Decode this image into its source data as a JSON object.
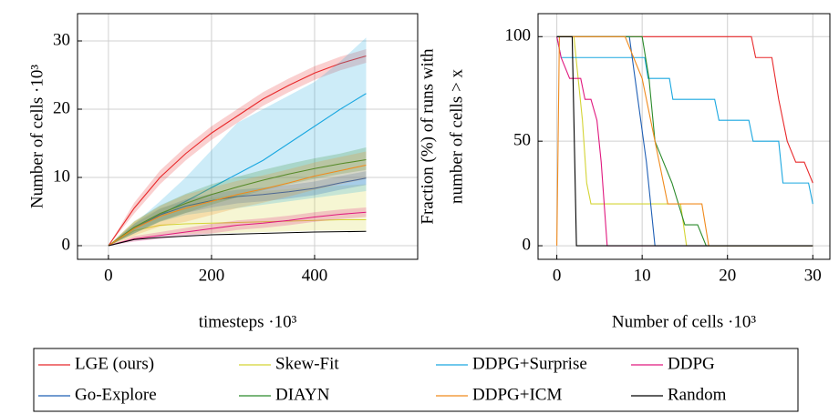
{
  "chart_data": [
    {
      "type": "line",
      "xlabel": "timesteps ·10³",
      "ylabel": "Number of cells ·10³",
      "xlim": [
        -60,
        600
      ],
      "ylim": [
        -2,
        34
      ],
      "xticks": [
        0,
        200,
        400
      ],
      "yticks": [
        0,
        10,
        20,
        30
      ],
      "grid": true,
      "x": [
        0,
        50,
        100,
        150,
        200,
        250,
        300,
        350,
        400,
        450,
        500
      ],
      "series": [
        {
          "name": "LGE (ours)",
          "color": "#e8282a",
          "values": [
            0,
            5.5,
            10,
            13.5,
            16.5,
            19,
            21.5,
            23.5,
            25.3,
            26.7,
            27.8
          ],
          "lower": [
            0,
            4.7,
            9,
            12.5,
            15.5,
            18,
            20.5,
            22.5,
            24.3,
            25.7,
            26.8
          ],
          "upper": [
            0,
            6.3,
            11,
            14.5,
            17.5,
            20,
            22.5,
            24.5,
            26.3,
            27.7,
            28.8
          ]
        },
        {
          "name": "Skew-Fit",
          "color": "#d4d435",
          "values": [
            0,
            2.2,
            3,
            3.2,
            3.3,
            3.4,
            3.5,
            3.6,
            3.7,
            3.8,
            3.8
          ],
          "lower": [
            0,
            0.8,
            1.5,
            1.7,
            1.8,
            1.9,
            2,
            2.1,
            2.2,
            2.2,
            2.2
          ],
          "upper": [
            0,
            3.5,
            5.5,
            6.5,
            7,
            7.5,
            8,
            8.3,
            8.6,
            8.8,
            9
          ]
        },
        {
          "name": "DDPG+Surprise",
          "color": "#1aa7e0",
          "values": [
            0,
            2.5,
            4.5,
            6.5,
            8.5,
            10.5,
            12.5,
            15,
            17.5,
            20,
            22.3
          ],
          "lower": [
            0,
            1.8,
            3.5,
            4.5,
            5,
            5.5,
            6,
            6.5,
            7,
            7.5,
            8
          ],
          "upper": [
            0,
            3.2,
            6.5,
            10,
            14,
            18,
            20,
            22,
            24,
            27,
            30.5
          ]
        },
        {
          "name": "DDPG",
          "color": "#e0197f",
          "values": [
            0,
            1,
            1.5,
            2,
            2.5,
            3,
            3.3,
            3.7,
            4.2,
            4.6,
            4.9
          ],
          "lower": [
            0,
            0.6,
            1,
            1.4,
            1.8,
            2.3,
            2.6,
            3,
            3.5,
            3.9,
            4.2
          ],
          "upper": [
            0,
            1.4,
            2,
            2.6,
            3.2,
            3.7,
            4,
            4.4,
            4.9,
            5.3,
            5.6
          ]
        },
        {
          "name": "Go-Explore",
          "color": "#1f5fb5",
          "values": [
            0,
            2.5,
            4.5,
            5.8,
            6.6,
            7.2,
            7.5,
            7.9,
            8.4,
            9.2,
            9.9
          ],
          "lower": [
            0,
            1.8,
            3.6,
            4.8,
            5.6,
            6.2,
            6.5,
            6.9,
            7.4,
            8.2,
            8.9
          ],
          "upper": [
            0,
            3.2,
            5.4,
            6.8,
            7.6,
            8.2,
            8.5,
            8.9,
            9.4,
            10.2,
            10.9
          ]
        },
        {
          "name": "DIAYN",
          "color": "#2a8a2a",
          "values": [
            0,
            2.7,
            4.7,
            6.2,
            7.5,
            8.6,
            9.6,
            10.5,
            11.3,
            12,
            12.6
          ],
          "lower": [
            0,
            1.8,
            3.5,
            4.8,
            6,
            7.1,
            8.1,
            9,
            9.8,
            10.5,
            11.1
          ],
          "upper": [
            0,
            3.6,
            5.9,
            7.6,
            9,
            10.1,
            11.1,
            12,
            12.8,
            13.5,
            14.4
          ]
        },
        {
          "name": "DDPG+ICM",
          "color": "#f08a1c",
          "values": [
            0,
            2.5,
            4.3,
            5.5,
            6.5,
            7.5,
            8.3,
            9.2,
            10.2,
            11,
            11.8
          ],
          "lower": [
            0,
            1.5,
            2.8,
            3.5,
            4.5,
            5.5,
            6.3,
            7.2,
            8.2,
            9,
            9.8
          ],
          "upper": [
            0,
            3.5,
            5.8,
            7.5,
            8.5,
            9.5,
            10.3,
            11.2,
            12.2,
            13,
            13.8
          ]
        },
        {
          "name": "Random",
          "color": "#000000",
          "values": [
            0,
            0.9,
            1.2,
            1.4,
            1.6,
            1.7,
            1.8,
            1.9,
            2.0,
            2.05,
            2.1
          ]
        }
      ]
    },
    {
      "type": "line",
      "xlabel": "Number of cells ·10³",
      "ylabel": [
        "Fraction (%) of runs with",
        "number of cells > x"
      ],
      "xlim": [
        -2.2,
        32
      ],
      "ylim": [
        -6.5,
        111
      ],
      "xticks": [
        0,
        10,
        20,
        30
      ],
      "yticks": [
        0,
        50,
        100
      ],
      "grid": true,
      "series": [
        {
          "color": "#e8282a",
          "x": [
            0,
            22.8,
            23.3,
            25.2,
            26,
            27,
            27.5,
            28,
            29,
            30
          ],
          "values": [
            100,
            100,
            90,
            90,
            70,
            50,
            45,
            40,
            40,
            30
          ]
        },
        {
          "color": "#d4d435",
          "x": [
            0,
            2,
            3,
            3.5,
            4,
            4.5,
            14.5,
            15.2,
            30
          ],
          "values": [
            100,
            100,
            60,
            30,
            20,
            20,
            20,
            0,
            0
          ]
        },
        {
          "color": "#1aa7e0",
          "x": [
            0,
            0.5,
            10.3,
            10.7,
            13.2,
            13.6,
            18.5,
            19,
            22.5,
            23,
            26,
            26.5,
            29.5,
            30
          ],
          "values": [
            100,
            90,
            90,
            80,
            80,
            70,
            70,
            60,
            60,
            50,
            50,
            30,
            30,
            20
          ]
        },
        {
          "color": "#e0197f",
          "x": [
            0,
            0.5,
            1.5,
            2.8,
            3.3,
            4,
            4.7,
            5.2,
            5.9,
            30
          ],
          "values": [
            100,
            90,
            80,
            80,
            70,
            70,
            60,
            40,
            0,
            0
          ]
        },
        {
          "color": "#1f5fb5",
          "x": [
            0,
            8.5,
            9.5,
            10.5,
            11,
            11.5,
            30
          ],
          "values": [
            100,
            100,
            70,
            40,
            20,
            0,
            0
          ]
        },
        {
          "color": "#2a8a2a",
          "x": [
            0,
            10,
            10.8,
            11.5,
            12.5,
            13.5,
            15,
            16.5,
            17.5,
            30
          ],
          "values": [
            100,
            100,
            80,
            50,
            40,
            30,
            10,
            10,
            0,
            0
          ]
        },
        {
          "color": "#f08a1c",
          "x": [
            0,
            0.3,
            8,
            9,
            10,
            11,
            12,
            13,
            17,
            17.8,
            30
          ],
          "values": [
            0,
            100,
            100,
            90,
            80,
            60,
            40,
            20,
            20,
            0,
            0
          ]
        },
        {
          "color": "#000000",
          "x": [
            0,
            1.8,
            2.3,
            30
          ],
          "values": [
            100,
            100,
            0,
            0
          ]
        }
      ]
    }
  ]
}
